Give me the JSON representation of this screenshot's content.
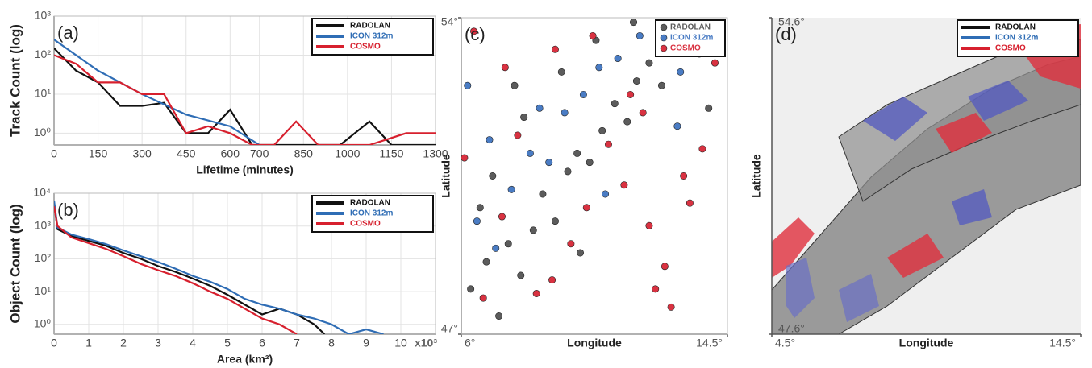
{
  "chart_data": [
    {
      "type": "line",
      "panel_label": "(a)",
      "x_label": "Lifetime (minutes)",
      "y_label": "Track Count (log)",
      "xlim": [
        0,
        1300
      ],
      "xticks": [
        0,
        150,
        300,
        450,
        600,
        700,
        850,
        1000,
        1150,
        1300
      ],
      "ylim": [
        0.5,
        1000
      ],
      "y_log": true,
      "yticks": [
        {
          "value": 1,
          "label": "10⁰"
        },
        {
          "value": 10,
          "label": "10¹"
        },
        {
          "value": 100,
          "label": "10²"
        },
        {
          "value": 1000,
          "label": "10³"
        }
      ],
      "grid": true,
      "legend": "upper right",
      "series": [
        {
          "name": "RADOLAN",
          "color": "#111111",
          "x": [
            0,
            75,
            150,
            225,
            300,
            375,
            450,
            525,
            600,
            675,
            750,
            825,
            900,
            975,
            1075,
            1150,
            1300
          ],
          "values": [
            150,
            40,
            20,
            5,
            5,
            6,
            1,
            1,
            4,
            0.5,
            0.5,
            0.5,
            0.5,
            0.5,
            2,
            0.5,
            0.5
          ]
        },
        {
          "name": "ICON 312m",
          "color": "#2f6db5",
          "x": [
            0,
            150,
            300,
            450,
            600,
            700
          ],
          "values": [
            250,
            40,
            10,
            3,
            1.5,
            0.5
          ]
        },
        {
          "name": "COSMO",
          "color": "#d7202e",
          "x": [
            0,
            75,
            150,
            225,
            300,
            375,
            450,
            525,
            600,
            675,
            750,
            825,
            900,
            975,
            1075,
            1200,
            1300
          ],
          "values": [
            100,
            60,
            20,
            20,
            10,
            10,
            1,
            1.5,
            1,
            0.5,
            0.5,
            2,
            0.5,
            0.5,
            0.5,
            1,
            1
          ]
        }
      ]
    },
    {
      "type": "line",
      "panel_label": "(b)",
      "x_label": "Area (km²)",
      "y_label": "Object Count (log)",
      "x_scale_label": "x10³",
      "xlim": [
        0,
        11
      ],
      "xticks": [
        0,
        1,
        2,
        3,
        4,
        5,
        6,
        7,
        8,
        9,
        10
      ],
      "ylim": [
        0.5,
        10000
      ],
      "y_log": true,
      "yticks": [
        {
          "value": 1,
          "label": "10⁰"
        },
        {
          "value": 10,
          "label": "10¹"
        },
        {
          "value": 100,
          "label": "10²"
        },
        {
          "value": 1000,
          "label": "10³"
        },
        {
          "value": 10000,
          "label": "10⁴"
        }
      ],
      "grid": true,
      "legend": "upper right",
      "series": [
        {
          "name": "RADOLAN",
          "color": "#111111",
          "x": [
            0,
            0.1,
            0.5,
            1,
            1.5,
            2,
            2.5,
            3,
            3.5,
            4,
            4.5,
            5,
            5.5,
            6,
            6.5,
            7,
            7.5,
            7.8
          ],
          "values": [
            5000,
            800,
            500,
            350,
            250,
            150,
            100,
            60,
            40,
            25,
            15,
            8,
            4,
            2,
            3,
            2,
            1,
            0.5
          ]
        },
        {
          "name": "ICON 312m",
          "color": "#2f6db5",
          "x": [
            0,
            0.1,
            0.5,
            1,
            1.5,
            2,
            2.5,
            3,
            3.5,
            4,
            4.5,
            5,
            5.5,
            6,
            6.5,
            7,
            7.5,
            8,
            8.5,
            9,
            9.5
          ],
          "values": [
            6000,
            900,
            550,
            400,
            280,
            180,
            120,
            80,
            50,
            30,
            20,
            12,
            6,
            4,
            3,
            2,
            1.5,
            1,
            0.5,
            0.7,
            0.5
          ]
        },
        {
          "name": "COSMO",
          "color": "#d7202e",
          "x": [
            0,
            0.1,
            0.5,
            1,
            1.5,
            2,
            2.5,
            3,
            3.5,
            4,
            4.5,
            5,
            5.5,
            6,
            6.5,
            7
          ],
          "values": [
            4000,
            1000,
            450,
            300,
            200,
            120,
            70,
            45,
            30,
            18,
            10,
            6,
            3,
            1.5,
            1,
            0.5
          ]
        }
      ]
    },
    {
      "type": "scatter",
      "panel_label": "(c)",
      "x_label": "Longitude",
      "y_label": "Latitude",
      "xlim": [
        6,
        14.5
      ],
      "xticks": [
        {
          "value": 6,
          "label": "6°"
        },
        {
          "value": 14.5,
          "label": "14.5°"
        }
      ],
      "ylim": [
        47,
        54
      ],
      "yticks": [
        {
          "value": 47,
          "label": "47°"
        },
        {
          "value": 54,
          "label": "54°"
        }
      ],
      "legend": "upper right",
      "series": [
        {
          "name": "RADOLAN",
          "color": "#5c5c5c",
          "x": [
            6.3,
            6.8,
            7.2,
            7.5,
            7.9,
            8.3,
            8.6,
            9.0,
            9.4,
            9.7,
            10.1,
            10.5,
            10.9,
            11.3,
            11.6,
            12.0,
            12.4,
            12.8,
            13.2,
            13.6,
            7.0,
            8.0,
            9.2,
            10.3,
            11.5,
            12.6,
            6.6,
            7.7,
            9.8,
            13.9
          ],
          "values": [
            48.0,
            48.6,
            47.4,
            49.0,
            48.3,
            49.3,
            50.1,
            49.5,
            50.6,
            51.0,
            50.8,
            51.5,
            52.1,
            51.7,
            52.6,
            53.0,
            52.5,
            53.4,
            53.8,
            53.2,
            50.5,
            51.8,
            52.8,
            53.5,
            53.9,
            53.7,
            49.8,
            52.5,
            48.8,
            52.0
          ]
        },
        {
          "name": "ICON 312m",
          "color": "#4a7cc4",
          "x": [
            6.2,
            6.5,
            7.1,
            7.6,
            8.2,
            8.8,
            9.3,
            9.9,
            10.4,
            11.0,
            11.7,
            12.3,
            13.0,
            13.5,
            6.9,
            8.5,
            10.6,
            12.9
          ],
          "values": [
            52.5,
            49.5,
            48.9,
            50.2,
            51.0,
            50.8,
            51.9,
            52.3,
            52.9,
            53.1,
            53.6,
            53.3,
            52.8,
            53.9,
            51.3,
            52.0,
            50.1,
            51.6
          ]
        },
        {
          "name": "COSMO",
          "color": "#d93241",
          "x": [
            6.1,
            6.7,
            7.3,
            7.8,
            8.4,
            8.9,
            9.5,
            10.0,
            10.7,
            11.2,
            11.8,
            12.2,
            12.7,
            13.1,
            13.7,
            14.1,
            12.0,
            12.5,
            11.4,
            10.2,
            9.0,
            7.4,
            6.4,
            13.3
          ],
          "values": [
            50.9,
            47.8,
            49.6,
            51.4,
            47.9,
            48.2,
            49.0,
            49.8,
            51.2,
            50.3,
            51.9,
            48.0,
            47.6,
            50.5,
            51.1,
            53.0,
            49.4,
            48.5,
            52.3,
            53.6,
            53.3,
            52.9,
            53.7,
            49.9
          ]
        }
      ]
    },
    {
      "type": "map",
      "panel_label": "(d)",
      "x_label": "Longitude",
      "y_label": "Latitude",
      "xlim": [
        4.5,
        14.5
      ],
      "xticks": [
        {
          "value": 4.5,
          "label": "4.5°"
        },
        {
          "value": 14.5,
          "label": "14.5°"
        }
      ],
      "ylim": [
        47.6,
        54.6
      ],
      "yticks": [
        {
          "value": 47.6,
          "label": "47.6°"
        },
        {
          "value": 54.6,
          "label": "54.6°"
        }
      ],
      "legend": "upper right",
      "series": [
        {
          "name": "RADOLAN",
          "color": "#111111"
        },
        {
          "name": "ICON 312m",
          "color": "#2f6db5"
        },
        {
          "name": "COSMO",
          "color": "#d7202e"
        }
      ]
    }
  ]
}
